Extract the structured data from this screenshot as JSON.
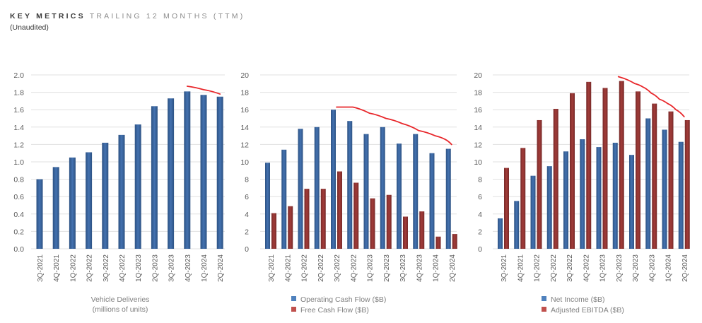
{
  "header": {
    "title_strong": "KEY METRICS",
    "title_light": "TRAILING 12 MONTHS (TTM)",
    "subtitle": "(Unaudited)"
  },
  "colors": {
    "blue": "#3c67a0",
    "blue_dark": "#2d5283",
    "red": "#923634",
    "red_dark": "#772a29",
    "legend_blue": "#4f81bd",
    "legend_red": "#c0504d",
    "trend": "#e8262a",
    "grid": "#e0e0e0"
  },
  "chart_data": [
    {
      "type": "bar",
      "title": "",
      "xlabel": "",
      "ylabel": "",
      "caption": [
        "Vehicle Deliveries",
        "(millions of units)"
      ],
      "categories": [
        "3Q-2021",
        "4Q-2021",
        "1Q-2022",
        "2Q-2022",
        "3Q-2022",
        "4Q-2022",
        "1Q-2023",
        "2Q-2023",
        "3Q-2023",
        "4Q-2023",
        "1Q-2024",
        "2Q-2024"
      ],
      "yticks": [
        "0.0",
        "0.2",
        "0.4",
        "0.6",
        "0.8",
        "1.0",
        "1.2",
        "1.4",
        "1.6",
        "1.8",
        "2.0"
      ],
      "ylim": [
        0,
        2.0
      ],
      "grid": true,
      "series": [
        {
          "name": "Vehicle Deliveries",
          "color": "blue",
          "values": [
            0.8,
            0.94,
            1.05,
            1.11,
            1.22,
            1.31,
            1.43,
            1.64,
            1.73,
            1.81,
            1.77,
            1.75
          ]
        }
      ],
      "legend": [],
      "annotation": {
        "type": "hand-drawn trend line",
        "color": "trend",
        "points": [
          [
            9,
            1.87
          ],
          [
            10,
            1.83
          ],
          [
            11,
            1.78
          ]
        ]
      }
    },
    {
      "type": "bar",
      "title": "",
      "xlabel": "",
      "ylabel": "",
      "caption": [],
      "categories": [
        "3Q-2021",
        "4Q-2021",
        "1Q-2022",
        "2Q-2022",
        "3Q-2022",
        "4Q-2022",
        "1Q-2023",
        "2Q-2023",
        "3Q-2023",
        "4Q-2023",
        "1Q-2024",
        "2Q-2024"
      ],
      "yticks": [
        "0",
        "2",
        "4",
        "6",
        "8",
        "10",
        "12",
        "14",
        "16",
        "18",
        "20"
      ],
      "ylim": [
        0,
        20
      ],
      "grid": true,
      "series": [
        {
          "name": "Operating Cash Flow ($B)",
          "color": "blue",
          "values": [
            9.9,
            11.4,
            13.8,
            14.0,
            16.0,
            14.7,
            13.2,
            14.0,
            12.1,
            13.2,
            11.0,
            11.5
          ]
        },
        {
          "name": "Free Cash Flow ($B)",
          "color": "red",
          "values": [
            4.1,
            4.9,
            6.9,
            6.9,
            8.9,
            7.6,
            5.8,
            6.2,
            3.7,
            4.3,
            1.4,
            1.7
          ]
        }
      ],
      "legend": [
        "Operating Cash Flow ($B)",
        "Free Cash Flow ($B)"
      ],
      "legend_position": "bottom",
      "annotation": {
        "type": "hand-drawn trend line",
        "color": "trend",
        "points": [
          [
            4,
            16.3
          ],
          [
            5,
            16.3
          ],
          [
            6,
            15.6
          ],
          [
            7,
            15.0
          ],
          [
            8,
            14.4
          ],
          [
            9,
            13.6
          ],
          [
            10,
            13.0
          ],
          [
            10.6,
            12.6
          ],
          [
            11,
            12.0
          ]
        ]
      }
    },
    {
      "type": "bar",
      "title": "",
      "xlabel": "",
      "ylabel": "",
      "caption": [],
      "categories": [
        "3Q-2021",
        "4Q-2021",
        "1Q-2022",
        "2Q-2022",
        "3Q-2022",
        "4Q-2022",
        "1Q-2023",
        "2Q-2023",
        "3Q-2023",
        "4Q-2023",
        "1Q-2024",
        "2Q-2024"
      ],
      "yticks": [
        "0",
        "2",
        "4",
        "6",
        "8",
        "10",
        "12",
        "14",
        "16",
        "18",
        "20"
      ],
      "ylim": [
        0,
        20
      ],
      "grid": true,
      "series": [
        {
          "name": "Net Income ($B)",
          "color": "blue",
          "values": [
            3.5,
            5.5,
            8.4,
            9.5,
            11.2,
            12.6,
            11.7,
            12.2,
            10.8,
            15.0,
            13.7,
            12.3
          ]
        },
        {
          "name": "Adjusted EBITDA ($B)",
          "color": "red",
          "values": [
            9.3,
            11.6,
            14.8,
            16.1,
            17.9,
            19.2,
            18.5,
            19.3,
            18.1,
            16.7,
            15.8,
            14.8
          ]
        }
      ],
      "legend": [
        "Net Income ($B)",
        "Adjusted EBITDA ($B)"
      ],
      "legend_position": "bottom",
      "annotation": {
        "type": "hand-drawn trend line",
        "color": "trend",
        "points": [
          [
            7,
            19.8
          ],
          [
            8,
            19.0
          ],
          [
            8.5,
            18.6
          ],
          [
            9,
            17.9
          ],
          [
            9.5,
            17.2
          ],
          [
            10,
            16.7
          ],
          [
            10.5,
            16.0
          ],
          [
            11,
            15.2
          ]
        ]
      }
    }
  ]
}
